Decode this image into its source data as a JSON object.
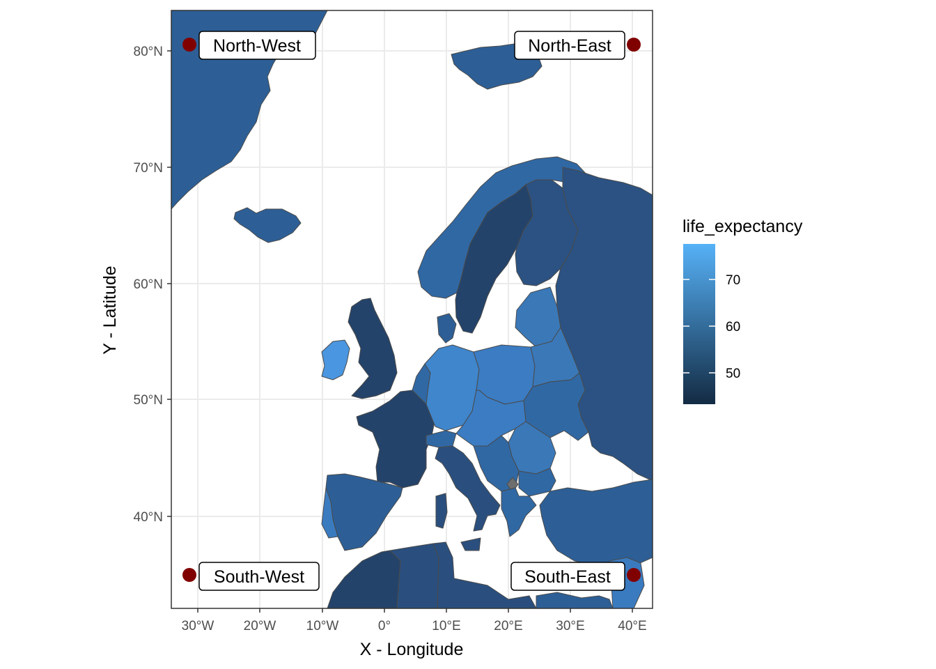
{
  "axes": {
    "x_title": "X - Longitude",
    "y_title": "Y - Latitude",
    "x_ticks": [
      "30°W",
      "20°W",
      "10°W",
      "0°",
      "10°E",
      "20°E",
      "30°E",
      "40°E"
    ],
    "y_ticks": [
      "40°N",
      "50°N",
      "60°N",
      "70°N",
      "80°N"
    ]
  },
  "legend": {
    "title": "life_expectancy",
    "labels": [
      "70",
      "60",
      "50"
    ],
    "colors": {
      "high": "#56B1F7",
      "low": "#132B43"
    }
  },
  "corner_points": [
    {
      "label": "North-West",
      "lon": -31.5,
      "lat": 80.5
    },
    {
      "label": "North-East",
      "lon": 40.5,
      "lat": 80.5
    },
    {
      "label": "South-West",
      "lon": -31.5,
      "lat": 35.0
    },
    {
      "label": "South-East",
      "lon": 40.5,
      "lat": 35.0
    }
  ],
  "point_color": "#800000",
  "map_colors": {
    "western_europe_mid": "#3a78b8",
    "central_europe_light": "#3f86cc",
    "north_dark": "#24436a",
    "russia": "#2b5282",
    "missing": "#6e6e6e"
  },
  "chart_data": {
    "type": "map",
    "xlabel": "X - Longitude",
    "ylabel": "Y - Latitude",
    "xlim": [
      -34,
      43
    ],
    "ylim": [
      32,
      83.5
    ],
    "fill_variable": "life_expectancy",
    "fill_range": [
      43,
      78
    ],
    "legend_breaks": [
      50,
      60,
      70
    ],
    "annotations": [
      {
        "label": "North-West",
        "lon": -31.5,
        "lat": 80.5
      },
      {
        "label": "North-East",
        "lon": 40.5,
        "lat": 80.5
      },
      {
        "label": "South-West",
        "lon": -31.5,
        "lat": 35.0
      },
      {
        "label": "South-East",
        "lon": 40.5,
        "lat": 35.0
      }
    ]
  }
}
